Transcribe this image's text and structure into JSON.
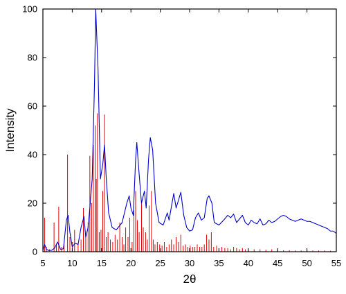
{
  "chart_data": {
    "type": "line",
    "title": "",
    "xlabel": "2θ",
    "ylabel": "Intensity",
    "xlim": [
      5,
      55
    ],
    "ylim": [
      0,
      100
    ],
    "xticks": [
      5,
      10,
      15,
      20,
      25,
      30,
      35,
      40,
      45,
      50,
      55
    ],
    "yticks": [
      0,
      20,
      40,
      60,
      80,
      100
    ],
    "grid": false,
    "legend": "none",
    "series": [
      {
        "color": "#0000cc",
        "style": "line",
        "points": [
          [
            5.0,
            0.5
          ],
          [
            5.3,
            3.0
          ],
          [
            5.6,
            1.0
          ],
          [
            6.0,
            0.5
          ],
          [
            6.5,
            0.6
          ],
          [
            7.0,
            1.5
          ],
          [
            7.5,
            4.0
          ],
          [
            8.0,
            1.0
          ],
          [
            8.5,
            1.2
          ],
          [
            9.0,
            13.0
          ],
          [
            9.3,
            15.0
          ],
          [
            9.6,
            8.0
          ],
          [
            10.0,
            2.0
          ],
          [
            10.5,
            3.5
          ],
          [
            11.0,
            3.0
          ],
          [
            11.5,
            10.0
          ],
          [
            12.0,
            14.5
          ],
          [
            12.3,
            6.0
          ],
          [
            12.7,
            10.0
          ],
          [
            13.0,
            18.0
          ],
          [
            13.4,
            30.0
          ],
          [
            13.8,
            70.0
          ],
          [
            14.0,
            100.0
          ],
          [
            14.4,
            75.0
          ],
          [
            14.8,
            30.0
          ],
          [
            15.2,
            36.0
          ],
          [
            15.5,
            44.0
          ],
          [
            15.8,
            30.0
          ],
          [
            16.2,
            16.0
          ],
          [
            16.8,
            10.0
          ],
          [
            17.5,
            9.0
          ],
          [
            18.5,
            12.0
          ],
          [
            19.3,
            20.0
          ],
          [
            19.7,
            23.0
          ],
          [
            20.0,
            18.0
          ],
          [
            20.4,
            15.0
          ],
          [
            20.8,
            38.0
          ],
          [
            21.0,
            45.0
          ],
          [
            21.4,
            32.0
          ],
          [
            21.8,
            20.0
          ],
          [
            22.3,
            25.0
          ],
          [
            22.6,
            18.0
          ],
          [
            23.0,
            38.0
          ],
          [
            23.3,
            47.0
          ],
          [
            23.7,
            42.0
          ],
          [
            24.2,
            20.0
          ],
          [
            24.8,
            12.0
          ],
          [
            25.5,
            11.0
          ],
          [
            26.2,
            16.0
          ],
          [
            26.5,
            13.0
          ],
          [
            27.0,
            20.0
          ],
          [
            27.3,
            24.0
          ],
          [
            27.7,
            18.0
          ],
          [
            28.2,
            22.0
          ],
          [
            28.5,
            24.5
          ],
          [
            29.0,
            15.0
          ],
          [
            29.5,
            10.0
          ],
          [
            30.0,
            8.5
          ],
          [
            30.5,
            9.0
          ],
          [
            31.0,
            14.0
          ],
          [
            31.5,
            16.0
          ],
          [
            32.0,
            13.0
          ],
          [
            32.5,
            14.0
          ],
          [
            33.0,
            22.0
          ],
          [
            33.3,
            23.0
          ],
          [
            33.8,
            20.0
          ],
          [
            34.2,
            12.0
          ],
          [
            35.0,
            11.0
          ],
          [
            35.8,
            13.0
          ],
          [
            36.5,
            15.0
          ],
          [
            37.0,
            14.0
          ],
          [
            37.5,
            15.5
          ],
          [
            38.0,
            12.0
          ],
          [
            38.5,
            13.5
          ],
          [
            39.0,
            15.0
          ],
          [
            39.5,
            12.0
          ],
          [
            40.0,
            11.0
          ],
          [
            40.5,
            13.0
          ],
          [
            41.0,
            12.0
          ],
          [
            41.5,
            11.5
          ],
          [
            42.0,
            13.5
          ],
          [
            42.5,
            11.0
          ],
          [
            43.0,
            11.5
          ],
          [
            43.5,
            13.0
          ],
          [
            44.0,
            12.0
          ],
          [
            44.5,
            12.5
          ],
          [
            45.0,
            13.5
          ],
          [
            45.5,
            14.5
          ],
          [
            46.0,
            15.0
          ],
          [
            46.5,
            14.5
          ],
          [
            47.0,
            13.5
          ],
          [
            47.5,
            13.0
          ],
          [
            48.0,
            12.5
          ],
          [
            48.5,
            13.0
          ],
          [
            49.0,
            13.5
          ],
          [
            49.5,
            13.0
          ],
          [
            50.0,
            12.5
          ],
          [
            50.5,
            12.5
          ],
          [
            51.0,
            12.0
          ],
          [
            51.5,
            11.5
          ],
          [
            52.0,
            11.0
          ],
          [
            52.5,
            10.5
          ],
          [
            53.0,
            10.0
          ],
          [
            53.5,
            9.5
          ],
          [
            54.0,
            8.5
          ],
          [
            54.5,
            8.5
          ],
          [
            55.0,
            7.5
          ]
        ]
      },
      {
        "color": "#e00000",
        "style": "stick",
        "points": [
          [
            5.3,
            14.0
          ],
          [
            5.6,
            2.0
          ],
          [
            6.1,
            1.0
          ],
          [
            6.9,
            12.0
          ],
          [
            7.3,
            3.0
          ],
          [
            7.7,
            18.5
          ],
          [
            8.2,
            2.0
          ],
          [
            8.6,
            4.0
          ],
          [
            9.2,
            40.0
          ],
          [
            9.6,
            6.0
          ],
          [
            10.0,
            4.0
          ],
          [
            10.4,
            9.0
          ],
          [
            11.0,
            3.0
          ],
          [
            11.5,
            5.0
          ],
          [
            11.9,
            18.0
          ],
          [
            12.3,
            6.0
          ],
          [
            12.7,
            12.0
          ],
          [
            13.0,
            39.5
          ],
          [
            13.3,
            20.0
          ],
          [
            13.6,
            44.0
          ],
          [
            13.9,
            52.0
          ],
          [
            14.1,
            30.0
          ],
          [
            14.3,
            57.0
          ],
          [
            14.6,
            8.0
          ],
          [
            14.9,
            9.0
          ],
          [
            15.2,
            25.0
          ],
          [
            15.5,
            56.5
          ],
          [
            15.8,
            6.0
          ],
          [
            16.1,
            8.0
          ],
          [
            16.5,
            5.0
          ],
          [
            16.9,
            4.0
          ],
          [
            17.3,
            7.0
          ],
          [
            17.7,
            5.0
          ],
          [
            18.1,
            12.0
          ],
          [
            18.5,
            6.0
          ],
          [
            18.8,
            3.0
          ],
          [
            19.1,
            10.0
          ],
          [
            19.5,
            6.0
          ],
          [
            19.8,
            14.0
          ],
          [
            20.2,
            4.0
          ],
          [
            20.5,
            17.0
          ],
          [
            20.8,
            25.0
          ],
          [
            21.1,
            13.0
          ],
          [
            21.4,
            8.0
          ],
          [
            21.8,
            20.0
          ],
          [
            22.1,
            10.0
          ],
          [
            22.5,
            8.0
          ],
          [
            22.8,
            5.0
          ],
          [
            23.1,
            19.0
          ],
          [
            23.5,
            25.0
          ],
          [
            23.8,
            5.0
          ],
          [
            24.1,
            3.0
          ],
          [
            24.5,
            4.0
          ],
          [
            24.9,
            3.0
          ],
          [
            25.3,
            2.5
          ],
          [
            25.7,
            4.0
          ],
          [
            26.1,
            2.0
          ],
          [
            26.5,
            3.0
          ],
          [
            26.9,
            5.0
          ],
          [
            27.3,
            3.0
          ],
          [
            27.7,
            6.0
          ],
          [
            28.1,
            4.0
          ],
          [
            28.5,
            7.0
          ],
          [
            28.9,
            2.5
          ],
          [
            29.3,
            3.0
          ],
          [
            29.7,
            2.0
          ],
          [
            30.1,
            2.5
          ],
          [
            30.5,
            2.0
          ],
          [
            30.9,
            2.0
          ],
          [
            31.3,
            3.0
          ],
          [
            31.7,
            2.0
          ],
          [
            32.1,
            2.0
          ],
          [
            32.5,
            3.0
          ],
          [
            32.9,
            7.0
          ],
          [
            33.3,
            5.0
          ],
          [
            33.7,
            8.0
          ],
          [
            34.1,
            2.0
          ],
          [
            34.6,
            2.5
          ],
          [
            35.0,
            1.5
          ],
          [
            35.5,
            2.0
          ],
          [
            36.0,
            1.5
          ],
          [
            36.5,
            1.5
          ],
          [
            37.0,
            1.0
          ],
          [
            37.5,
            2.0
          ],
          [
            38.0,
            1.5
          ],
          [
            38.5,
            1.0
          ],
          [
            39.0,
            1.5
          ],
          [
            39.5,
            1.0
          ],
          [
            40.0,
            1.0
          ],
          [
            41.0,
            1.0
          ],
          [
            42.0,
            1.0
          ],
          [
            43.0,
            0.8
          ],
          [
            44.0,
            1.0
          ],
          [
            45.0,
            0.8
          ],
          [
            46.0,
            0.6
          ],
          [
            47.0,
            0.6
          ],
          [
            48.0,
            0.5
          ],
          [
            49.0,
            0.5
          ],
          [
            50.0,
            0.6
          ],
          [
            51.0,
            0.5
          ],
          [
            52.0,
            0.5
          ],
          [
            53.0,
            0.5
          ],
          [
            54.0,
            0.4
          ]
        ]
      }
    ]
  }
}
